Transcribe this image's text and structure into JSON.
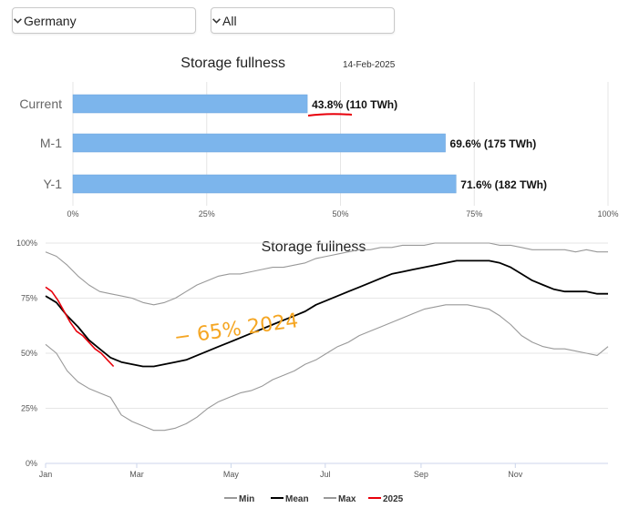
{
  "filters": {
    "country": "Germany",
    "range": "All"
  },
  "bar_chart": {
    "title": "Storage fullness",
    "date": "14-Feb-2025",
    "bar_color": "#7cb5ec"
  },
  "line_chart": {
    "title": "Storage fullness",
    "annotation_text": "− 65% 2024",
    "annotation_color": "#f5a623"
  },
  "chart_data": [
    {
      "type": "bar",
      "orientation": "horizontal",
      "title": "Storage fullness",
      "subtitle": "14-Feb-2025",
      "categories": [
        "Current",
        "M-1",
        "Y-1"
      ],
      "values": [
        43.8,
        69.6,
        71.6
      ],
      "data_labels": [
        "43.8% (110 TWh)",
        "69.6% (175 TWh)",
        "71.6% (182 TWh)"
      ],
      "xlim": [
        0,
        100
      ],
      "xticks": [
        "0%",
        "25%",
        "50%",
        "75%",
        "100%"
      ],
      "grid": true
    },
    {
      "type": "line",
      "title": "Storage fullness",
      "ylim": [
        0,
        100
      ],
      "yticks": [
        "0%",
        "25%",
        "50%",
        "75%",
        "100%"
      ],
      "xticks": [
        "Jan",
        "Mar",
        "May",
        "Jul",
        "Sep",
        "Nov"
      ],
      "legend_position": "bottom",
      "series": [
        {
          "name": "Min",
          "color": "#999999",
          "x": [
            0,
            7,
            14,
            21,
            28,
            35,
            42,
            49,
            56,
            63,
            70,
            77,
            84,
            91,
            98,
            105,
            112,
            119,
            126,
            133,
            140,
            147,
            154,
            161,
            168,
            175,
            182,
            189,
            196,
            203,
            210,
            217,
            224,
            231,
            238,
            245,
            252,
            259,
            266,
            273,
            280,
            287,
            294,
            301,
            308,
            315,
            322,
            329,
            336,
            343,
            350,
            357,
            364
          ],
          "y": [
            54,
            50,
            42,
            37,
            34,
            32,
            30,
            22,
            19,
            17,
            15,
            15,
            16,
            18,
            21,
            25,
            28,
            30,
            32,
            33,
            35,
            38,
            40,
            42,
            45,
            47,
            50,
            53,
            55,
            58,
            60,
            62,
            64,
            66,
            68,
            70,
            71,
            72,
            72,
            72,
            71,
            70,
            67,
            63,
            58,
            55,
            53,
            52,
            52,
            51,
            50,
            49,
            53
          ]
        },
        {
          "name": "Mean",
          "color": "#000000",
          "x": [
            0,
            7,
            14,
            21,
            28,
            35,
            42,
            49,
            56,
            63,
            70,
            77,
            84,
            91,
            98,
            105,
            112,
            119,
            126,
            133,
            140,
            147,
            154,
            161,
            168,
            175,
            182,
            189,
            196,
            203,
            210,
            217,
            224,
            231,
            238,
            245,
            252,
            259,
            266,
            273,
            280,
            287,
            294,
            301,
            308,
            315,
            322,
            329,
            336,
            343,
            350,
            357,
            364
          ],
          "y": [
            76,
            73,
            67,
            62,
            56,
            52,
            48,
            46,
            45,
            44,
            44,
            45,
            46,
            47,
            49,
            51,
            53,
            55,
            57,
            59,
            61,
            63,
            65,
            67,
            69,
            72,
            74,
            76,
            78,
            80,
            82,
            84,
            86,
            87,
            88,
            89,
            90,
            91,
            92,
            92,
            92,
            92,
            91,
            89,
            86,
            83,
            81,
            79,
            78,
            78,
            78,
            77,
            77
          ]
        },
        {
          "name": "Max",
          "color": "#999999",
          "x": [
            0,
            7,
            14,
            21,
            28,
            35,
            42,
            49,
            56,
            63,
            70,
            77,
            84,
            91,
            98,
            105,
            112,
            119,
            126,
            133,
            140,
            147,
            154,
            161,
            168,
            175,
            182,
            189,
            196,
            203,
            210,
            217,
            224,
            231,
            238,
            245,
            252,
            259,
            266,
            273,
            280,
            287,
            294,
            301,
            308,
            315,
            322,
            329,
            336,
            343,
            350,
            357,
            364
          ],
          "y": [
            96,
            94,
            90,
            85,
            81,
            78,
            77,
            76,
            75,
            73,
            72,
            73,
            75,
            78,
            81,
            83,
            85,
            86,
            86,
            87,
            88,
            89,
            89,
            90,
            91,
            93,
            94,
            95,
            96,
            97,
            97,
            98,
            98,
            99,
            99,
            99,
            100,
            100,
            100,
            100,
            100,
            100,
            99,
            99,
            98,
            97,
            97,
            97,
            97,
            96,
            97,
            96,
            96
          ]
        },
        {
          "name": "2025",
          "color": "#e8000b",
          "x": [
            0,
            4,
            8,
            12,
            16,
            20,
            24,
            28,
            32,
            36,
            40,
            44
          ],
          "y": [
            80,
            78,
            74,
            69,
            64,
            60,
            58,
            55,
            52,
            50,
            47,
            44
          ]
        }
      ]
    }
  ]
}
